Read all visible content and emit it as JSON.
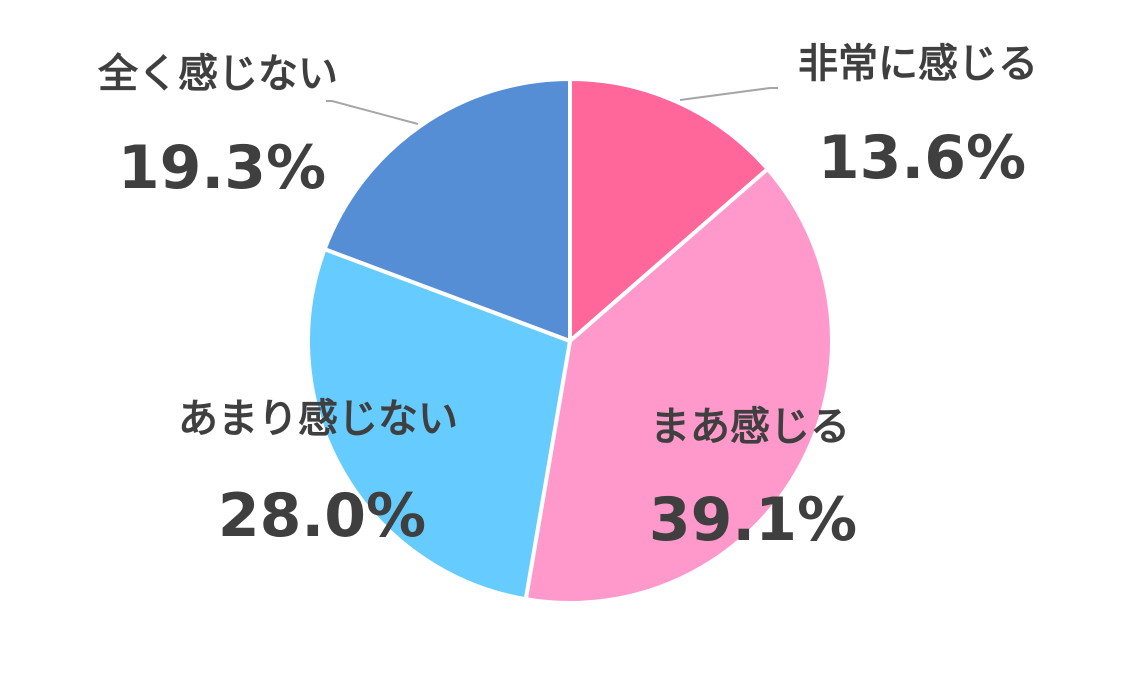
{
  "chart_data": {
    "type": "pie",
    "unit": "%",
    "start": "12 o'clock",
    "direction": "clockwise",
    "slices": [
      {
        "label": "非常に感じる",
        "value": 13.6,
        "display": "13.6%",
        "color": "#ff6699"
      },
      {
        "label": "まあ感じる",
        "value": 39.1,
        "display": "39.1%",
        "color": "#ff99cc"
      },
      {
        "label": "あまり感じない",
        "value": 28.0,
        "display": "28.0%",
        "color": "#66ccff"
      },
      {
        "label": "全く感じない",
        "value": 19.3,
        "display": "19.3%",
        "color": "#558ed5"
      }
    ],
    "slice_border_color": "#ffffff",
    "leader_line_color": "#a6a6a6",
    "label_text_color": "#3f3f3f"
  }
}
